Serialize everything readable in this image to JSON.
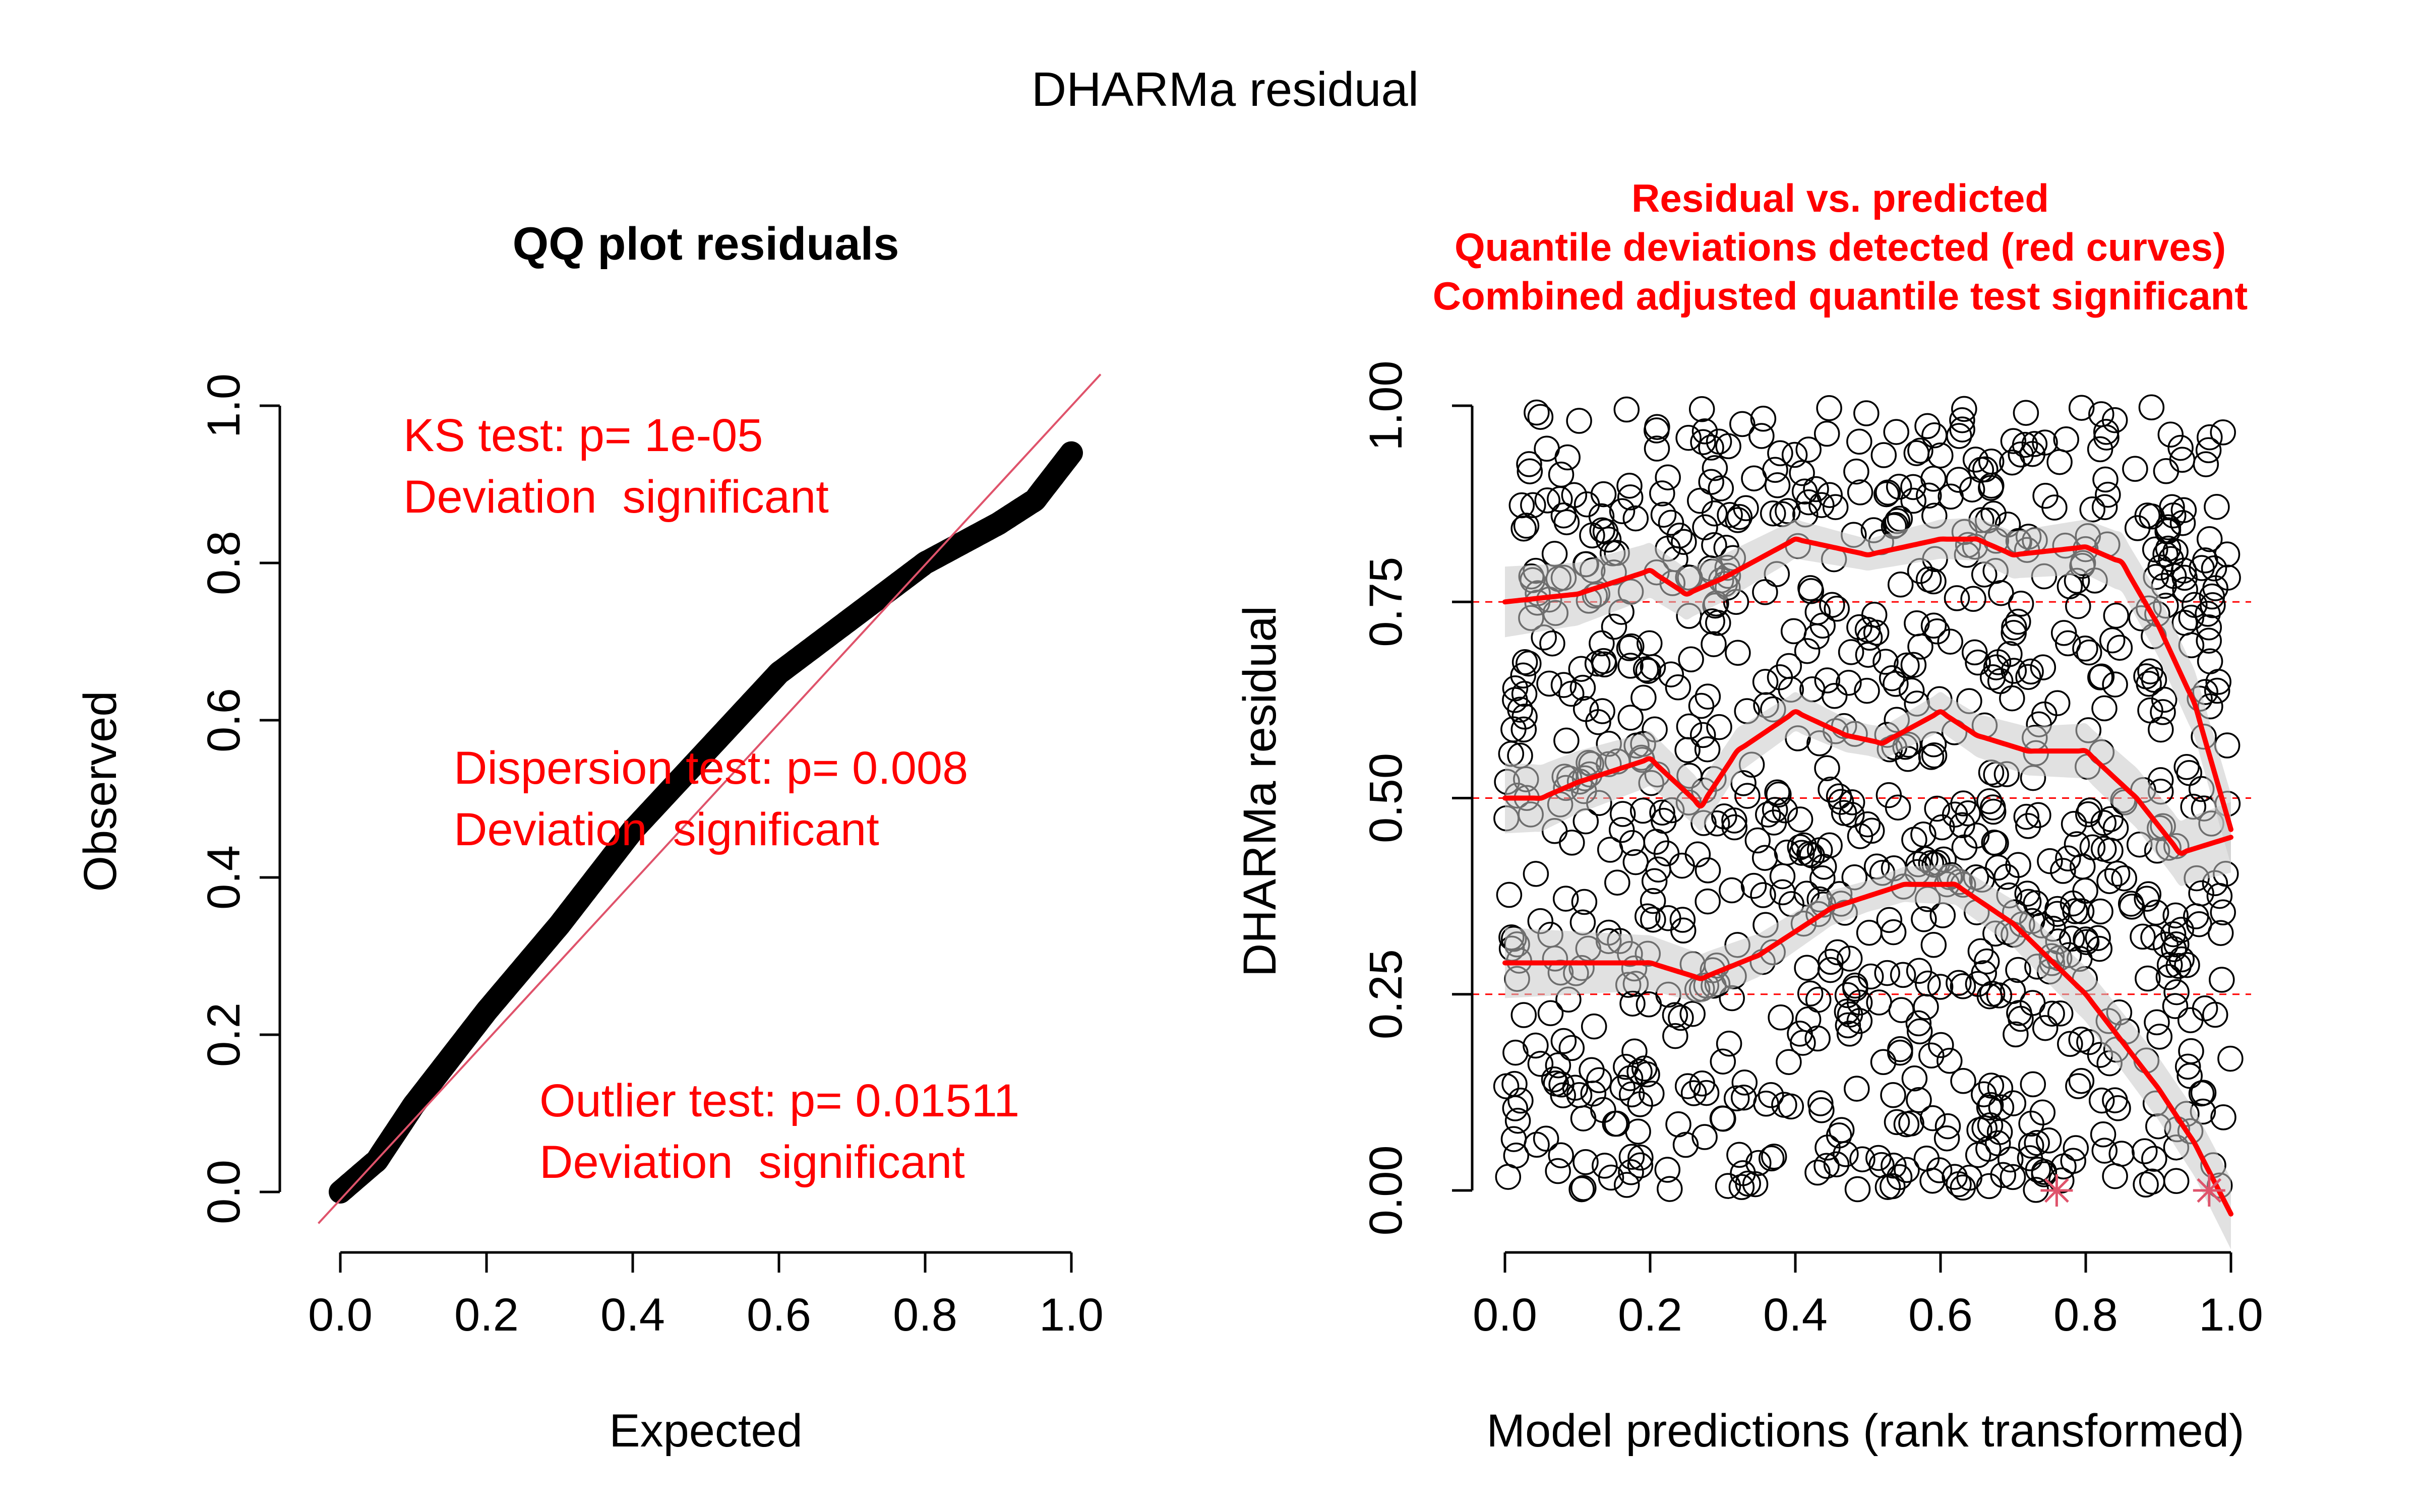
{
  "figure": {
    "title": "DHARMa residual"
  },
  "chart_data": [
    {
      "type": "scatter",
      "title": "QQ plot residuals",
      "xlabel": "Expected",
      "ylabel": "Observed",
      "xlim": [
        0,
        1
      ],
      "ylim": [
        0,
        1
      ],
      "xticks": [
        "0.0",
        "0.2",
        "0.4",
        "0.6",
        "0.8",
        "1.0"
      ],
      "yticks": [
        "0.0",
        "0.2",
        "0.4",
        "0.6",
        "0.8",
        "1.0"
      ],
      "reference_line": {
        "from": [
          0,
          0
        ],
        "to": [
          1,
          1
        ],
        "color": "#DF536B"
      },
      "qq_curve": {
        "x": [
          0.0,
          0.05,
          0.1,
          0.15,
          0.2,
          0.3,
          0.4,
          0.5,
          0.6,
          0.7,
          0.8,
          0.9,
          0.95,
          1.0
        ],
        "y": [
          0.0,
          0.04,
          0.11,
          0.17,
          0.23,
          0.34,
          0.46,
          0.56,
          0.66,
          0.73,
          0.8,
          0.85,
          0.88,
          0.94
        ]
      },
      "annotations": [
        {
          "lines": [
            "KS test: p= 1e-05",
            "Deviation  significant"
          ],
          "color": "#FF0000"
        },
        {
          "lines": [
            "Dispersion test: p= 0.008",
            "Deviation  significant"
          ],
          "color": "#FF0000"
        },
        {
          "lines": [
            "Outlier test: p= 0.01511",
            "Deviation  significant"
          ],
          "color": "#FF0000"
        }
      ]
    },
    {
      "type": "scatter",
      "title_lines": [
        "Residual vs. predicted",
        "Quantile deviations detected (red curves)",
        "Combined adjusted quantile test significant"
      ],
      "title_color": "#FF0000",
      "xlabel": "Model predictions (rank transformed)",
      "ylabel": "DHARMa residual",
      "xlim": [
        0,
        1
      ],
      "ylim": [
        0,
        1
      ],
      "xticks": [
        "0.0",
        "0.2",
        "0.4",
        "0.6",
        "0.8",
        "1.0"
      ],
      "yticks": [
        "0.00",
        "0.25",
        "0.50",
        "0.75",
        "1.00"
      ],
      "reference_lines_y": [
        0.25,
        0.5,
        0.75
      ],
      "point_count_approx": 1000,
      "quantile_curves": [
        {
          "quantile": 0.25,
          "x": [
            0.0,
            0.1,
            0.2,
            0.27,
            0.35,
            0.45,
            0.55,
            0.62,
            0.7,
            0.8,
            0.9,
            0.95,
            1.0
          ],
          "y": [
            0.29,
            0.29,
            0.29,
            0.27,
            0.3,
            0.36,
            0.39,
            0.39,
            0.34,
            0.25,
            0.13,
            0.06,
            -0.03
          ]
        },
        {
          "quantile": 0.5,
          "x": [
            0.0,
            0.05,
            0.1,
            0.2,
            0.27,
            0.32,
            0.4,
            0.47,
            0.52,
            0.6,
            0.65,
            0.72,
            0.8,
            0.87,
            0.93,
            1.0
          ],
          "y": [
            0.5,
            0.5,
            0.52,
            0.55,
            0.49,
            0.56,
            0.61,
            0.58,
            0.57,
            0.61,
            0.58,
            0.56,
            0.56,
            0.5,
            0.43,
            0.45
          ]
        },
        {
          "quantile": 0.75,
          "x": [
            0.0,
            0.1,
            0.2,
            0.25,
            0.3,
            0.4,
            0.5,
            0.6,
            0.65,
            0.7,
            0.8,
            0.85,
            0.9,
            0.95,
            1.0
          ],
          "y": [
            0.75,
            0.76,
            0.79,
            0.76,
            0.78,
            0.83,
            0.81,
            0.83,
            0.83,
            0.81,
            0.82,
            0.8,
            0.72,
            0.62,
            0.46
          ]
        }
      ],
      "outlier_markers": [
        {
          "x": 0.76,
          "y": 0.0
        },
        {
          "x": 0.97,
          "y": 0.0
        }
      ],
      "colors": {
        "points": "#000000",
        "curves": "#FF0000",
        "bands": "#C8C8C8",
        "outliers": "#DF536B"
      }
    }
  ]
}
